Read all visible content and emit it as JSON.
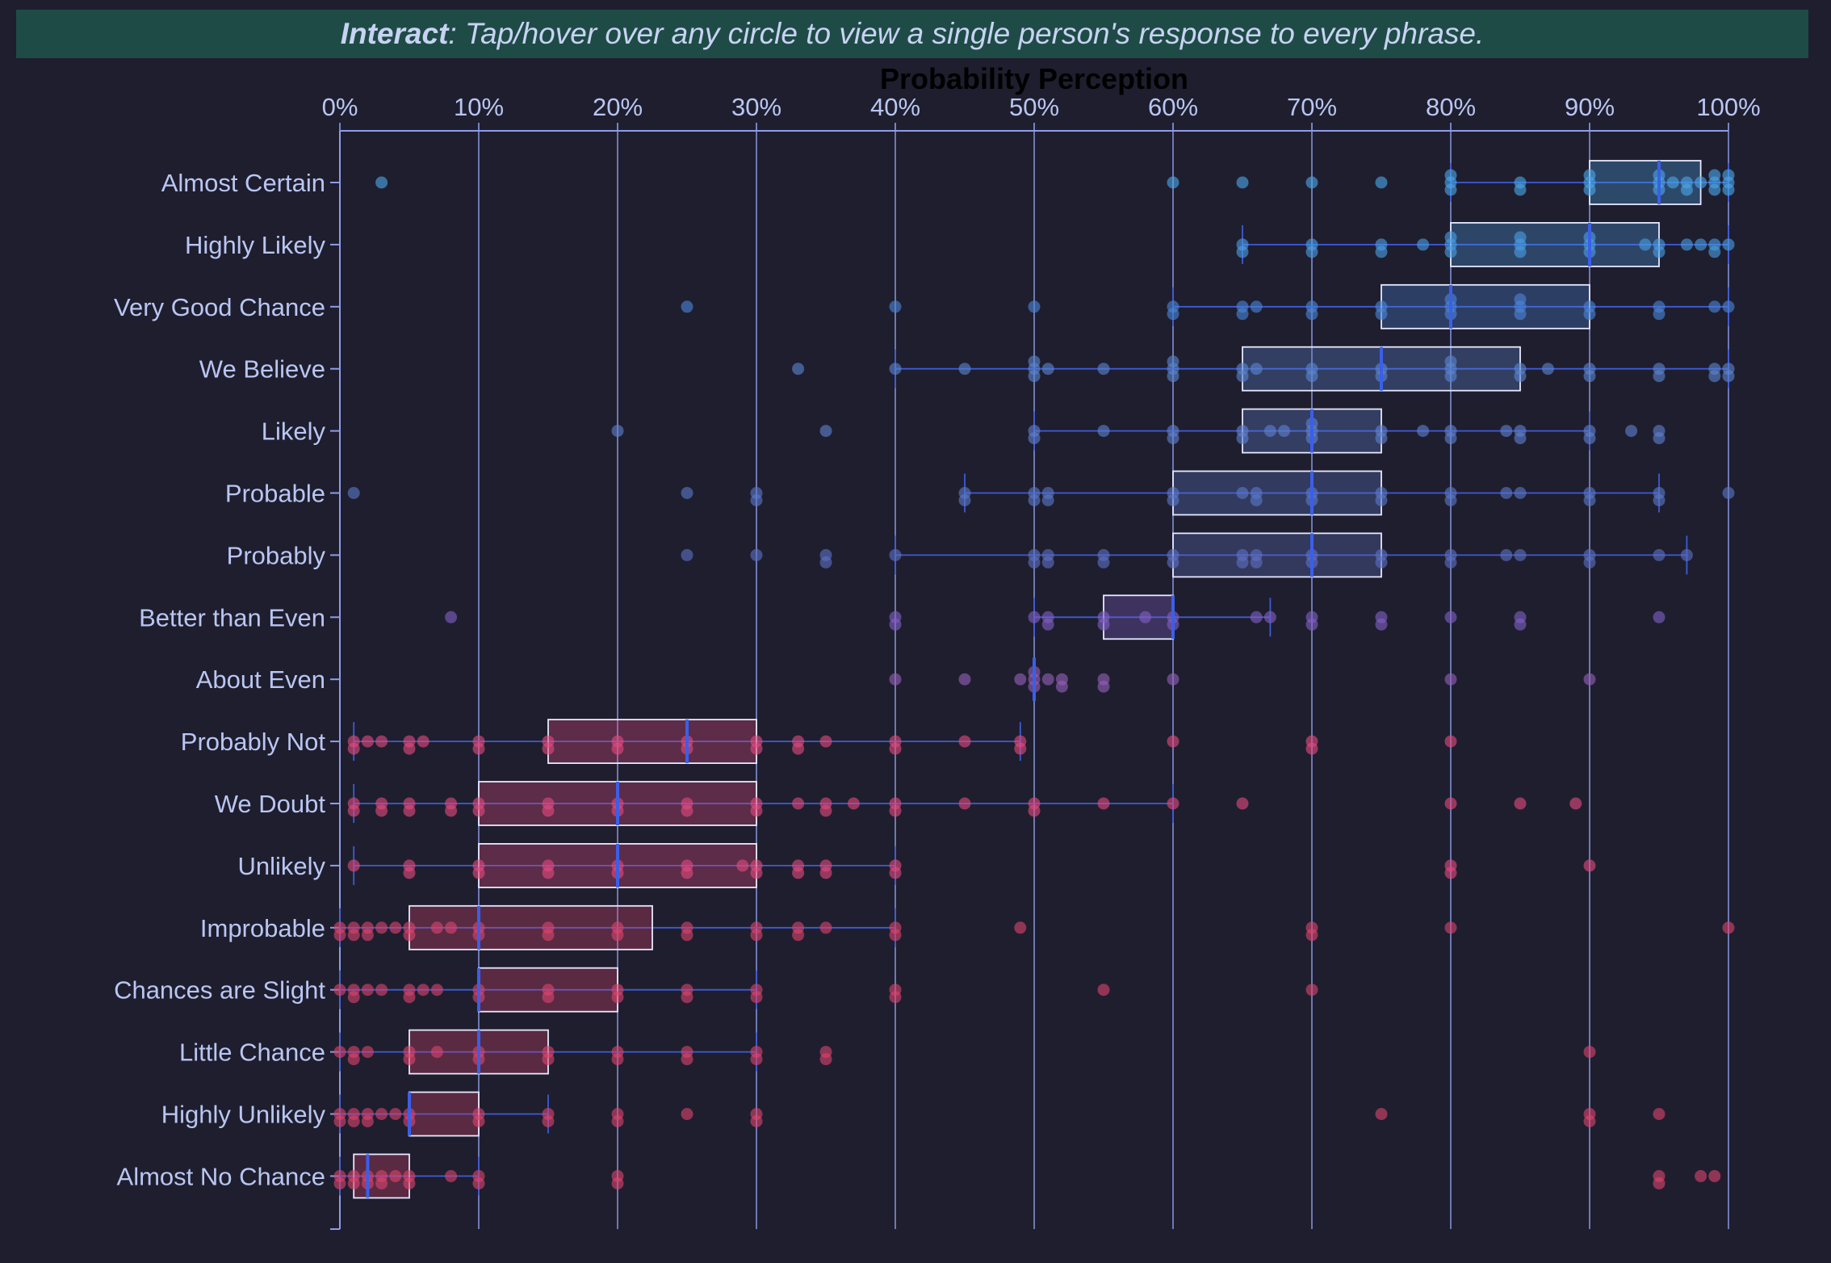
{
  "banner": {
    "bold": "Interact",
    "rest": ": Tap/hover over any circle to view a single person's response to every phrase."
  },
  "chart_data": {
    "type": "box",
    "title": "Probability Perception",
    "xlabel": "",
    "ylabel": "",
    "xlim": [
      0,
      100
    ],
    "x_ticks": [
      "0%",
      "10%",
      "20%",
      "30%",
      "40%",
      "50%",
      "60%",
      "70%",
      "80%",
      "90%",
      "100%"
    ],
    "grid": true,
    "colors": {
      "background": "#1f1e2e",
      "axis": "#8d9de8",
      "median": "#3a5fe8",
      "whisker": "#3d5bd8"
    },
    "series": [
      {
        "label": "Almost Certain",
        "whisker": [
          80,
          100
        ],
        "q1": 90,
        "median": 95,
        "q3": 98,
        "color": "#4ba6e8",
        "points": [
          3,
          60,
          65,
          70,
          75,
          80,
          80,
          80,
          85,
          85,
          90,
          90,
          90,
          95,
          95,
          95,
          96,
          97,
          97,
          98,
          99,
          99,
          99,
          100,
          100,
          100
        ]
      },
      {
        "label": "Highly Likely",
        "whisker": [
          65,
          100
        ],
        "q1": 80,
        "median": 90,
        "q3": 95,
        "color": "#4a9ce4",
        "points": [
          65,
          65,
          70,
          70,
          75,
          75,
          78,
          80,
          80,
          80,
          85,
          85,
          85,
          90,
          90,
          90,
          94,
          95,
          95,
          97,
          98,
          99,
          99,
          100
        ]
      },
      {
        "label": "Very Good Chance",
        "whisker": [
          60,
          100
        ],
        "q1": 75,
        "median": 80,
        "q3": 90,
        "color": "#4a84d6",
        "points": [
          25,
          40,
          50,
          60,
          60,
          65,
          65,
          66,
          70,
          70,
          75,
          75,
          80,
          80,
          80,
          85,
          85,
          85,
          90,
          90,
          95,
          95,
          99,
          100
        ]
      },
      {
        "label": "We Believe",
        "whisker": [
          40,
          100
        ],
        "q1": 65,
        "median": 75,
        "q3": 85,
        "color": "#5b85cf",
        "points": [
          33,
          40,
          45,
          50,
          50,
          50,
          51,
          55,
          60,
          60,
          60,
          65,
          65,
          66,
          70,
          70,
          75,
          75,
          80,
          80,
          80,
          85,
          85,
          87,
          90,
          90,
          95,
          95,
          99,
          99,
          100,
          100
        ]
      },
      {
        "label": "Likely",
        "whisker": [
          50,
          90
        ],
        "q1": 65,
        "median": 70,
        "q3": 75,
        "color": "#5f7fcf",
        "points": [
          20,
          35,
          50,
          50,
          55,
          60,
          60,
          65,
          65,
          67,
          68,
          70,
          70,
          70,
          75,
          75,
          78,
          80,
          80,
          84,
          85,
          85,
          90,
          90,
          93,
          95,
          95
        ]
      },
      {
        "label": "Probable",
        "whisker": [
          45,
          95
        ],
        "q1": 60,
        "median": 70,
        "q3": 75,
        "color": "#5a78c8",
        "points": [
          1,
          25,
          30,
          30,
          45,
          45,
          50,
          50,
          51,
          51,
          60,
          60,
          65,
          66,
          66,
          70,
          70,
          75,
          75,
          80,
          80,
          84,
          85,
          90,
          90,
          95,
          95,
          100
        ]
      },
      {
        "label": "Probably",
        "whisker": [
          40,
          97
        ],
        "q1": 60,
        "median": 70,
        "q3": 75,
        "color": "#5c70c2",
        "points": [
          25,
          30,
          35,
          35,
          40,
          50,
          50,
          51,
          51,
          55,
          55,
          60,
          60,
          65,
          65,
          66,
          66,
          70,
          70,
          75,
          75,
          80,
          80,
          84,
          85,
          90,
          90,
          95,
          97
        ]
      },
      {
        "label": "Better than Even",
        "whisker": [
          50,
          67
        ],
        "q1": 55,
        "median": 60,
        "q3": 60,
        "color": "#8060c4",
        "points": [
          8,
          40,
          40,
          50,
          51,
          51,
          55,
          55,
          58,
          60,
          60,
          66,
          67,
          70,
          70,
          75,
          75,
          80,
          85,
          85,
          95
        ]
      },
      {
        "label": "About Even",
        "whisker": [
          50,
          50
        ],
        "q1": 50,
        "median": 50,
        "q3": 50,
        "color": "#9360b8",
        "points": [
          40,
          45,
          49,
          50,
          50,
          50,
          51,
          52,
          52,
          55,
          55,
          60,
          80,
          90
        ]
      },
      {
        "label": "Probably Not",
        "whisker": [
          1,
          49
        ],
        "q1": 15,
        "median": 25,
        "q3": 30,
        "color": "#e04a7e",
        "points": [
          1,
          1,
          2,
          3,
          5,
          5,
          6,
          10,
          10,
          15,
          15,
          20,
          20,
          25,
          25,
          30,
          30,
          33,
          33,
          35,
          40,
          40,
          45,
          49,
          49,
          60,
          70,
          70,
          80
        ]
      },
      {
        "label": "We Doubt",
        "whisker": [
          1,
          60
        ],
        "q1": 10,
        "median": 20,
        "q3": 30,
        "color": "#e04a7e",
        "points": [
          1,
          1,
          3,
          3,
          5,
          5,
          8,
          8,
          10,
          10,
          15,
          15,
          20,
          20,
          25,
          25,
          30,
          30,
          33,
          35,
          35,
          37,
          40,
          40,
          45,
          50,
          50,
          55,
          60,
          65,
          80,
          85,
          89
        ]
      },
      {
        "label": "Unlikely",
        "whisker": [
          1,
          40
        ],
        "q1": 10,
        "median": 20,
        "q3": 30,
        "color": "#e04a7e",
        "points": [
          1,
          5,
          5,
          10,
          10,
          15,
          15,
          20,
          20,
          25,
          25,
          29,
          30,
          30,
          33,
          33,
          35,
          35,
          40,
          40,
          80,
          80,
          90
        ]
      },
      {
        "label": "Improbable",
        "whisker": [
          0,
          40
        ],
        "q1": 5,
        "median": 10,
        "q3": 22.5,
        "color": "#d8446e",
        "points": [
          0,
          0,
          1,
          1,
          2,
          2,
          3,
          4,
          5,
          5,
          7,
          8,
          10,
          10,
          15,
          15,
          20,
          20,
          25,
          25,
          30,
          30,
          33,
          33,
          35,
          40,
          40,
          49,
          70,
          70,
          80,
          100
        ]
      },
      {
        "label": "Chances are Slight",
        "whisker": [
          0,
          30
        ],
        "q1": 10,
        "median": 10,
        "q3": 20,
        "color": "#d8446e",
        "points": [
          0,
          1,
          1,
          2,
          3,
          5,
          5,
          6,
          7,
          10,
          10,
          15,
          15,
          20,
          20,
          25,
          25,
          30,
          30,
          40,
          40,
          55,
          70
        ]
      },
      {
        "label": "Little Chance",
        "whisker": [
          0,
          30
        ],
        "q1": 5,
        "median": 10,
        "q3": 15,
        "color": "#d8446e",
        "points": [
          0,
          1,
          1,
          2,
          5,
          5,
          7,
          10,
          10,
          15,
          15,
          20,
          20,
          25,
          25,
          30,
          30,
          35,
          35,
          90
        ]
      },
      {
        "label": "Highly Unlikely",
        "whisker": [
          0,
          15
        ],
        "q1": 5,
        "median": 5,
        "q3": 10,
        "color": "#d8446e",
        "points": [
          0,
          0,
          1,
          1,
          2,
          2,
          3,
          4,
          5,
          5,
          10,
          10,
          15,
          15,
          20,
          20,
          25,
          30,
          30,
          75,
          90,
          90,
          95
        ]
      },
      {
        "label": "Almost No Chance",
        "whisker": [
          0,
          10
        ],
        "q1": 1,
        "median": 2,
        "q3": 5,
        "color": "#d8446e",
        "points": [
          0,
          0,
          1,
          1,
          2,
          2,
          3,
          3,
          4,
          5,
          5,
          8,
          10,
          10,
          20,
          20,
          95,
          95,
          98,
          99
        ]
      }
    ]
  }
}
